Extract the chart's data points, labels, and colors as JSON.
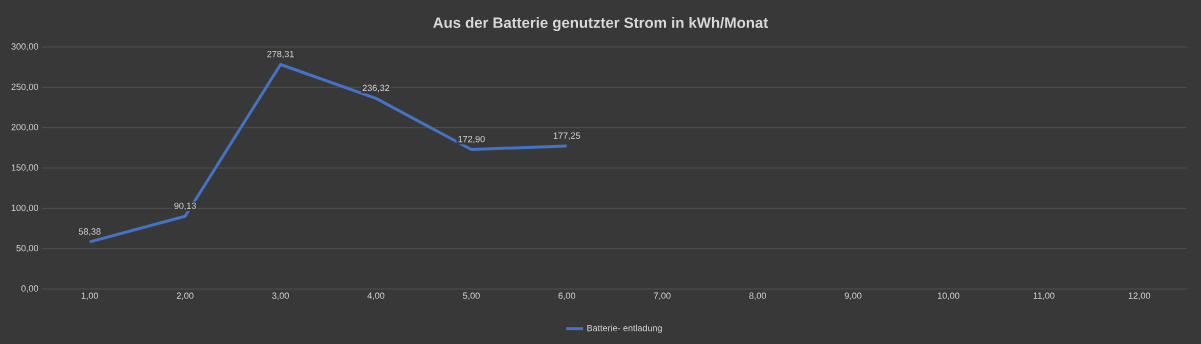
{
  "chart_data": {
    "type": "line",
    "title": "Aus der Batterie genutzter Strom in kWh/Monat",
    "categories": [
      "1,00",
      "2,00",
      "3,00",
      "4,00",
      "5,00",
      "6,00",
      "7,00",
      "8,00",
      "9,00",
      "10,00",
      "11,00",
      "12,00"
    ],
    "series": [
      {
        "name": "Batterie- entladung",
        "color": "#4472c4",
        "values": [
          58.38,
          90.13,
          278.31,
          236.32,
          172.9,
          177.25,
          null,
          null,
          null,
          null,
          null,
          null
        ],
        "value_labels": [
          "58,38",
          "90,13",
          "278,31",
          "236,32",
          "172,90",
          "177,25",
          null,
          null,
          null,
          null,
          null,
          null
        ]
      }
    ],
    "ylim": [
      0,
      300
    ],
    "yticks": [
      {
        "value": 0,
        "label": "0,00"
      },
      {
        "value": 50,
        "label": "50,00"
      },
      {
        "value": 100,
        "label": "100,00"
      },
      {
        "value": 150,
        "label": "150,00"
      },
      {
        "value": 200,
        "label": "200,00"
      },
      {
        "value": 250,
        "label": "250,00"
      },
      {
        "value": 300,
        "label": "300,00"
      }
    ],
    "grid": "y",
    "legend": "bottom",
    "marker": "none",
    "line_style": "solid"
  }
}
